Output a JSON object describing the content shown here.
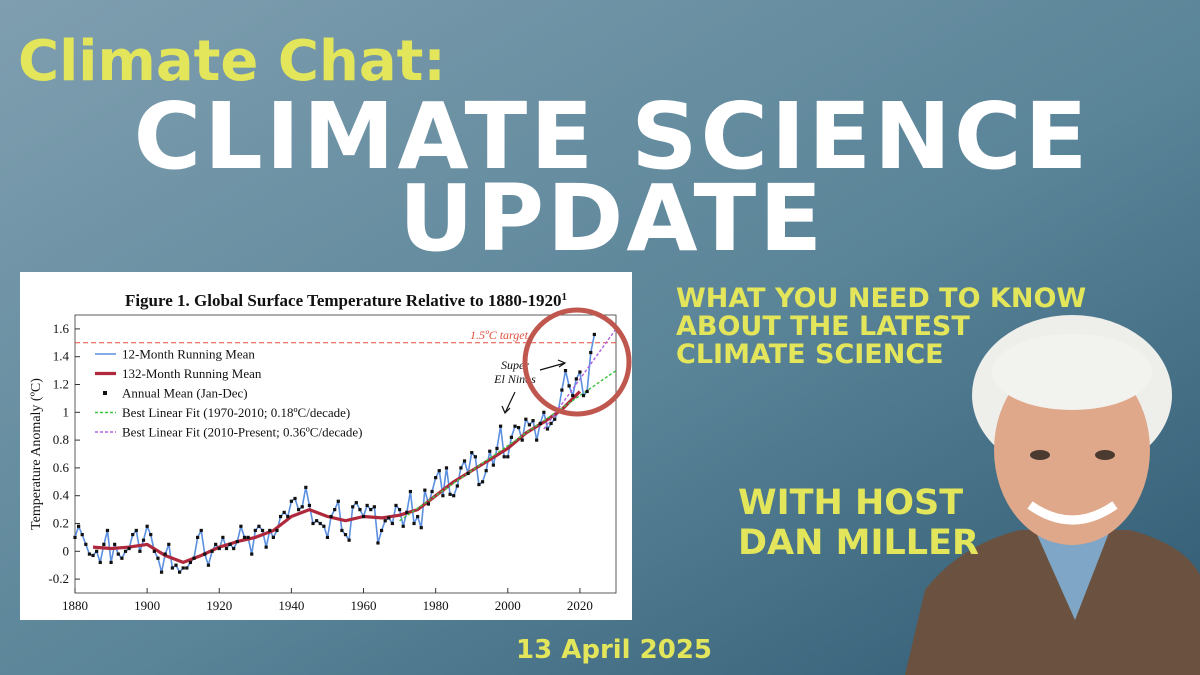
{
  "header": {
    "series": "Climate Chat:",
    "title_lines": [
      "CLIMATE SCIENCE",
      "UPDATE"
    ]
  },
  "tagline_lines": [
    "WHAT YOU NEED TO KNOW",
    "ABOUT THE LATEST",
    "CLIMATE SCIENCE"
  ],
  "host_lines": [
    "WITH HOST",
    "DAN MILLER"
  ],
  "date": "13 April 2025",
  "chart_data": {
    "type": "line",
    "title": "Figure 1. Global Surface Temperature Relative to 1880-1920",
    "title_note": "1",
    "y_label": "Temperature Anomaly (ºC)",
    "xlim": [
      1880,
      2030
    ],
    "xticks": [
      1880,
      1900,
      1920,
      1940,
      1960,
      1980,
      2000,
      2020
    ],
    "ylim": [
      -0.3,
      1.7
    ],
    "yticks": [
      -0.2,
      0,
      0.2,
      0.4,
      0.6,
      0.8,
      1,
      1.2,
      1.4,
      1.6
    ],
    "grid": false,
    "reference_line": {
      "value": 1.5,
      "label": "1.5ºC target",
      "color": "#e05040"
    },
    "annotation": [
      "Super",
      "El Ninos"
    ],
    "x": [
      1880,
      1881,
      1882,
      1883,
      1884,
      1885,
      1886,
      1887,
      1888,
      1889,
      1890,
      1891,
      1892,
      1893,
      1894,
      1895,
      1896,
      1897,
      1898,
      1899,
      1900,
      1901,
      1902,
      1903,
      1904,
      1905,
      1906,
      1907,
      1908,
      1909,
      1910,
      1911,
      1912,
      1913,
      1914,
      1915,
      1916,
      1917,
      1918,
      1919,
      1920,
      1921,
      1922,
      1923,
      1924,
      1925,
      1926,
      1927,
      1928,
      1929,
      1930,
      1931,
      1932,
      1933,
      1934,
      1935,
      1936,
      1937,
      1938,
      1939,
      1940,
      1941,
      1942,
      1943,
      1944,
      1945,
      1946,
      1947,
      1948,
      1949,
      1950,
      1951,
      1952,
      1953,
      1954,
      1955,
      1956,
      1957,
      1958,
      1959,
      1960,
      1961,
      1962,
      1963,
      1964,
      1965,
      1966,
      1967,
      1968,
      1969,
      1970,
      1971,
      1972,
      1973,
      1974,
      1975,
      1976,
      1977,
      1978,
      1979,
      1980,
      1981,
      1982,
      1983,
      1984,
      1985,
      1986,
      1987,
      1988,
      1989,
      1990,
      1991,
      1992,
      1993,
      1994,
      1995,
      1996,
      1997,
      1998,
      1999,
      2000,
      2001,
      2002,
      2003,
      2004,
      2005,
      2006,
      2007,
      2008,
      2009,
      2010,
      2011,
      2012,
      2013,
      2014,
      2015,
      2016,
      2017,
      2018,
      2019,
      2020,
      2021,
      2022,
      2023,
      2024
    ],
    "series": [
      {
        "name": "12-Month Running Mean",
        "color": "#5b8fe0",
        "style": "line",
        "values": [
          0.1,
          0.18,
          0.12,
          0.05,
          -0.02,
          -0.03,
          0.0,
          -0.08,
          0.05,
          0.15,
          -0.08,
          0.05,
          -0.02,
          -0.05,
          0.0,
          0.02,
          0.12,
          0.15,
          0.0,
          0.08,
          0.18,
          0.12,
          0.0,
          -0.05,
          -0.15,
          -0.02,
          0.05,
          -0.12,
          -0.1,
          -0.15,
          -0.12,
          -0.12,
          -0.08,
          -0.05,
          0.1,
          0.15,
          -0.02,
          -0.1,
          0.0,
          0.05,
          0.02,
          0.1,
          0.02,
          0.05,
          0.02,
          0.07,
          0.18,
          0.1,
          0.1,
          -0.02,
          0.15,
          0.18,
          0.15,
          0.03,
          0.15,
          0.1,
          0.15,
          0.25,
          0.28,
          0.25,
          0.36,
          0.38,
          0.3,
          0.32,
          0.46,
          0.33,
          0.2,
          0.22,
          0.2,
          0.18,
          0.1,
          0.25,
          0.3,
          0.36,
          0.15,
          0.12,
          0.08,
          0.32,
          0.35,
          0.3,
          0.25,
          0.33,
          0.3,
          0.32,
          0.06,
          0.15,
          0.22,
          0.24,
          0.2,
          0.33,
          0.3,
          0.18,
          0.28,
          0.43,
          0.2,
          0.25,
          0.17,
          0.44,
          0.34,
          0.43,
          0.53,
          0.58,
          0.4,
          0.6,
          0.41,
          0.4,
          0.47,
          0.6,
          0.65,
          0.56,
          0.71,
          0.68,
          0.48,
          0.5,
          0.58,
          0.72,
          0.62,
          0.74,
          0.9,
          0.68,
          0.68,
          0.82,
          0.9,
          0.89,
          0.8,
          0.95,
          0.91,
          0.94,
          0.8,
          0.92,
          1.0,
          0.88,
          0.92,
          0.95,
          1.01,
          1.16,
          1.3,
          1.19,
          1.12,
          1.24,
          1.29,
          1.12,
          1.15,
          1.43,
          1.56
        ]
      },
      {
        "name": "132-Month Running Mean",
        "color": "#b0283c",
        "style": "thick",
        "x": [
          1885,
          1890,
          1895,
          1900,
          1905,
          1910,
          1915,
          1920,
          1925,
          1930,
          1935,
          1940,
          1945,
          1950,
          1955,
          1960,
          1965,
          1970,
          1975,
          1980,
          1985,
          1990,
          1995,
          2000,
          2005,
          2010,
          2015,
          2020
        ],
        "values": [
          0.03,
          0.02,
          0.03,
          0.05,
          -0.03,
          -0.08,
          -0.03,
          0.03,
          0.07,
          0.1,
          0.15,
          0.25,
          0.3,
          0.25,
          0.22,
          0.25,
          0.24,
          0.26,
          0.3,
          0.4,
          0.5,
          0.58,
          0.66,
          0.74,
          0.85,
          0.93,
          1.02,
          1.15
        ]
      },
      {
        "name": "Annual Mean (Jan-Dec)",
        "color": "#111111",
        "style": "markers",
        "values": [
          0.1,
          0.18,
          0.12,
          0.05,
          -0.02,
          -0.03,
          0.0,
          -0.08,
          0.05,
          0.15,
          -0.08,
          0.05,
          -0.02,
          -0.05,
          0.0,
          0.02,
          0.12,
          0.15,
          0.0,
          0.08,
          0.18,
          0.12,
          0.0,
          -0.05,
          -0.15,
          -0.02,
          0.05,
          -0.12,
          -0.1,
          -0.15,
          -0.12,
          -0.12,
          -0.08,
          -0.05,
          0.1,
          0.15,
          -0.02,
          -0.1,
          0.0,
          0.05,
          0.02,
          0.1,
          0.02,
          0.05,
          0.02,
          0.07,
          0.18,
          0.1,
          0.1,
          -0.02,
          0.15,
          0.18,
          0.15,
          0.03,
          0.15,
          0.1,
          0.15,
          0.25,
          0.28,
          0.25,
          0.36,
          0.38,
          0.3,
          0.32,
          0.46,
          0.33,
          0.2,
          0.22,
          0.2,
          0.18,
          0.1,
          0.25,
          0.3,
          0.36,
          0.15,
          0.12,
          0.08,
          0.32,
          0.35,
          0.3,
          0.25,
          0.33,
          0.3,
          0.32,
          0.06,
          0.15,
          0.22,
          0.24,
          0.2,
          0.33,
          0.3,
          0.18,
          0.28,
          0.43,
          0.2,
          0.25,
          0.17,
          0.44,
          0.34,
          0.43,
          0.53,
          0.58,
          0.4,
          0.6,
          0.41,
          0.4,
          0.47,
          0.6,
          0.65,
          0.56,
          0.71,
          0.68,
          0.48,
          0.5,
          0.58,
          0.72,
          0.62,
          0.74,
          0.9,
          0.68,
          0.68,
          0.82,
          0.9,
          0.89,
          0.8,
          0.95,
          0.91,
          0.94,
          0.8,
          0.92,
          1.0,
          0.88,
          0.92,
          0.95,
          1.01,
          1.16,
          1.3,
          1.19,
          1.12,
          1.24,
          1.29,
          1.12,
          1.15,
          1.43,
          1.56
        ]
      },
      {
        "name": "Best Linear Fit (1970-2010; 0.18ºC/decade)",
        "color": "#3cc43c",
        "style": "dashed",
        "x": [
          1970,
          2030
        ],
        "values": [
          0.22,
          1.3
        ]
      },
      {
        "name": "Best Linear Fit (2010-Present; 0.36ºC/decade)",
        "color": "#b060e0",
        "style": "dashed",
        "x": [
          2010,
          2030
        ],
        "values": [
          0.88,
          1.6
        ]
      }
    ]
  }
}
